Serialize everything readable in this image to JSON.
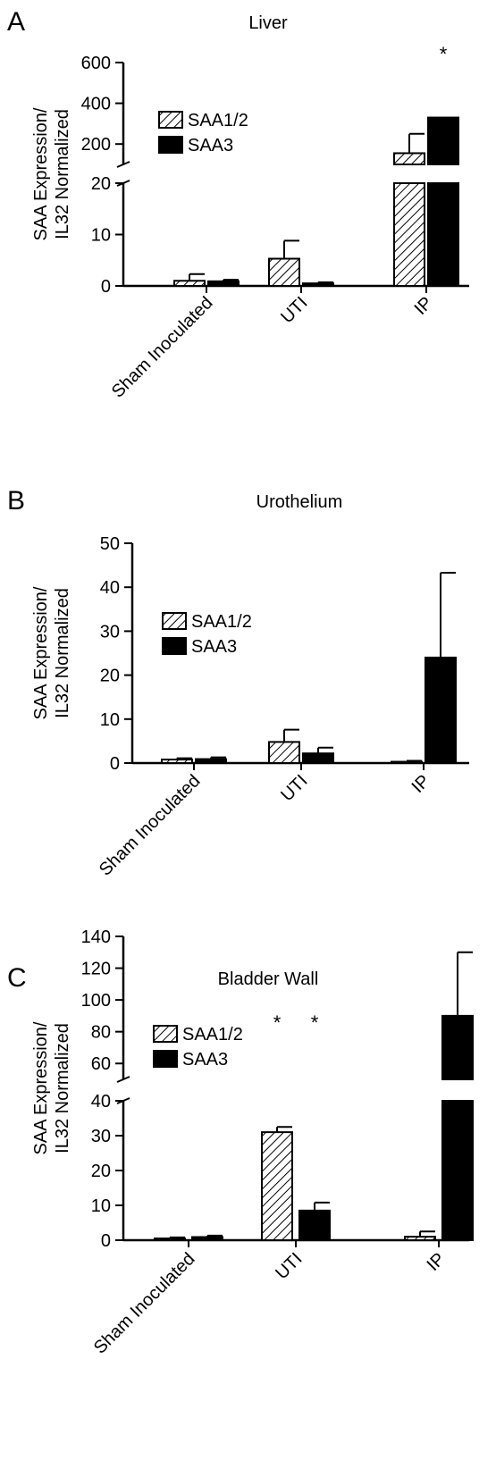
{
  "figure": {
    "series_styles": [
      {
        "name": "SAA1/2",
        "fill": "hatch",
        "color": "#000000"
      },
      {
        "name": "SAA3",
        "fill": "solid",
        "color": "#000000"
      }
    ]
  },
  "chart_data": [
    {
      "panel": "A",
      "type": "bar",
      "title": "Liver",
      "ylabel": [
        "SAA Expression/",
        "IL32 Normalized"
      ],
      "categories": [
        "Sham Inoculated",
        "UTI",
        "IP"
      ],
      "y_axis": "broken",
      "ylim_lower": [
        0,
        20
      ],
      "ylim_upper": [
        100,
        600
      ],
      "yticks_lower": [
        0,
        10,
        20
      ],
      "yticks_upper": [
        200,
        400,
        600
      ],
      "legend": {
        "position": "upper-left",
        "entries": [
          "SAA1/2",
          "SAA3"
        ]
      },
      "series": [
        {
          "name": "SAA1/2",
          "values": [
            1,
            5.3,
            155
          ],
          "errors": [
            1.3,
            3.5,
            95
          ]
        },
        {
          "name": "SAA3",
          "values": [
            0.9,
            0.5,
            330
          ],
          "errors": [
            0.3,
            0.2,
            0
          ]
        }
      ],
      "significance": [
        {
          "category": "IP",
          "series": "SAA3",
          "mark": "*"
        }
      ]
    },
    {
      "panel": "B",
      "type": "bar",
      "title": "Urothelium",
      "ylabel": [
        "SAA Expression/",
        "IL32 Normalized"
      ],
      "categories": [
        "Sham Inoculated",
        "UTI",
        "IP"
      ],
      "y_axis": "linear",
      "ylim": [
        0,
        50
      ],
      "yticks": [
        0,
        10,
        20,
        30,
        40,
        50
      ],
      "legend": {
        "position": "upper-left",
        "entries": [
          "SAA1/2",
          "SAA3"
        ]
      },
      "series": [
        {
          "name": "SAA1/2",
          "values": [
            0.8,
            4.8,
            0.3
          ],
          "errors": [
            0.3,
            2.8,
            0.2
          ]
        },
        {
          "name": "SAA3",
          "values": [
            0.9,
            2.2,
            24
          ],
          "errors": [
            0.4,
            1.3,
            19.3
          ]
        }
      ],
      "significance": []
    },
    {
      "panel": "C",
      "type": "bar",
      "title": "Bladder Wall",
      "ylabel": [
        "SAA Expression/",
        "IL32 Normalized"
      ],
      "categories": [
        "Sham Inoculated",
        "UTI",
        "IP"
      ],
      "y_axis": "broken",
      "ylim_lower": [
        0,
        40
      ],
      "ylim_upper": [
        50,
        140
      ],
      "yticks_lower": [
        0,
        10,
        20,
        30,
        40
      ],
      "yticks_upper": [
        60,
        80,
        100,
        120,
        140
      ],
      "legend": {
        "position": "upper-left",
        "entries": [
          "SAA1/2",
          "SAA3"
        ]
      },
      "series": [
        {
          "name": "SAA1/2",
          "values": [
            0.5,
            31,
            1
          ],
          "errors": [
            0.3,
            1.5,
            1.5
          ]
        },
        {
          "name": "SAA3",
          "values": [
            0.9,
            8.5,
            90
          ],
          "errors": [
            0.4,
            2.3,
            40
          ]
        }
      ],
      "significance": [
        {
          "category": "UTI",
          "series": "SAA1/2",
          "mark": "*"
        },
        {
          "category": "UTI",
          "series": "SAA3",
          "mark": "*"
        }
      ]
    }
  ]
}
